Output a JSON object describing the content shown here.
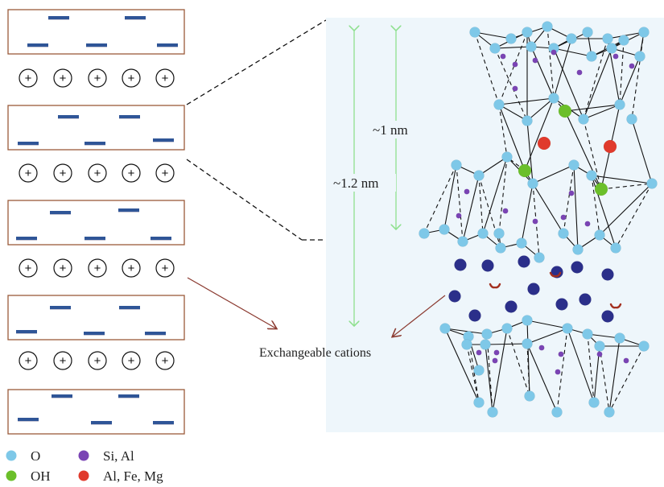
{
  "labels": {
    "d1": "~1 nm",
    "d2": "~1.2 nm",
    "exchangeable": "Exchangeable cations"
  },
  "legend": [
    {
      "symbol": "O",
      "color": "#7ec8e8"
    },
    {
      "symbol": "OH",
      "color": "#6bbf2a"
    },
    {
      "symbol": "Si, Al",
      "color": "#7a44b4"
    },
    {
      "symbol": "Al, Fe, Mg",
      "color": "#e03a2c"
    }
  ],
  "layer_count": 5,
  "cation_row_count": 4,
  "cations_per_row": 5,
  "cation_glyph": "+",
  "colors": {
    "layer_border": "#9a5a3a",
    "negative_charge": "#2f5597",
    "panel_bg": "#eef6fb",
    "arrow": "#8b3a30",
    "dimension": "#8ee08e",
    "exchange_cation": "#2b2f8a",
    "water": "#a33020"
  }
}
